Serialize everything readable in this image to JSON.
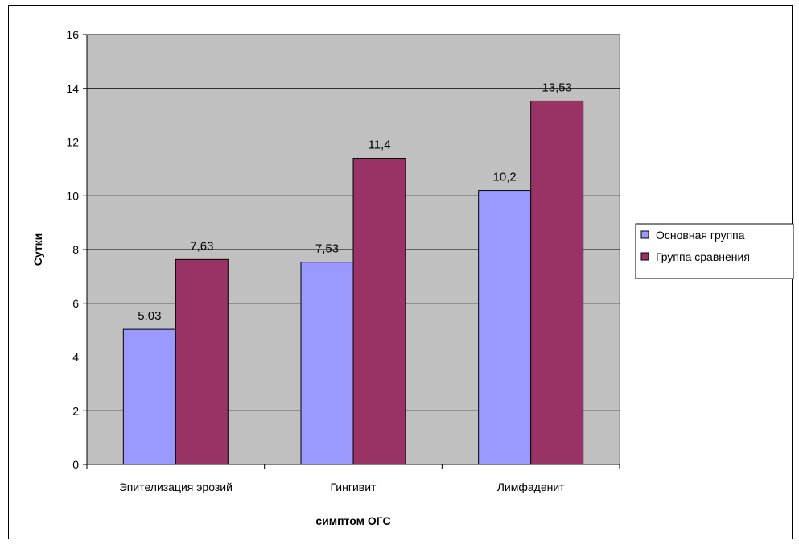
{
  "chart_data": {
    "type": "bar",
    "categories": [
      "Эпителизация эрозий",
      "Гингивит",
      "Лимфаденит"
    ],
    "series": [
      {
        "name": "Основная группа",
        "values": [
          5.03,
          7.53,
          10.2
        ],
        "labels": [
          "5,03",
          "7,53",
          "10,2"
        ],
        "color": "#9999ff"
      },
      {
        "name": "Группа сравнения",
        "values": [
          7.63,
          11.4,
          13.53
        ],
        "labels": [
          "7,63",
          "11,4",
          "13,53"
        ],
        "color": "#993366"
      }
    ],
    "title": "",
    "xlabel": "симптом ОГС",
    "ylabel": "Сутки",
    "ylim": [
      0,
      16
    ],
    "yticks": [
      "0",
      "2",
      "4",
      "6",
      "8",
      "10",
      "12",
      "14",
      "16"
    ],
    "grid": true,
    "plot_background": "#c0c0c0",
    "legend_position": "right"
  }
}
